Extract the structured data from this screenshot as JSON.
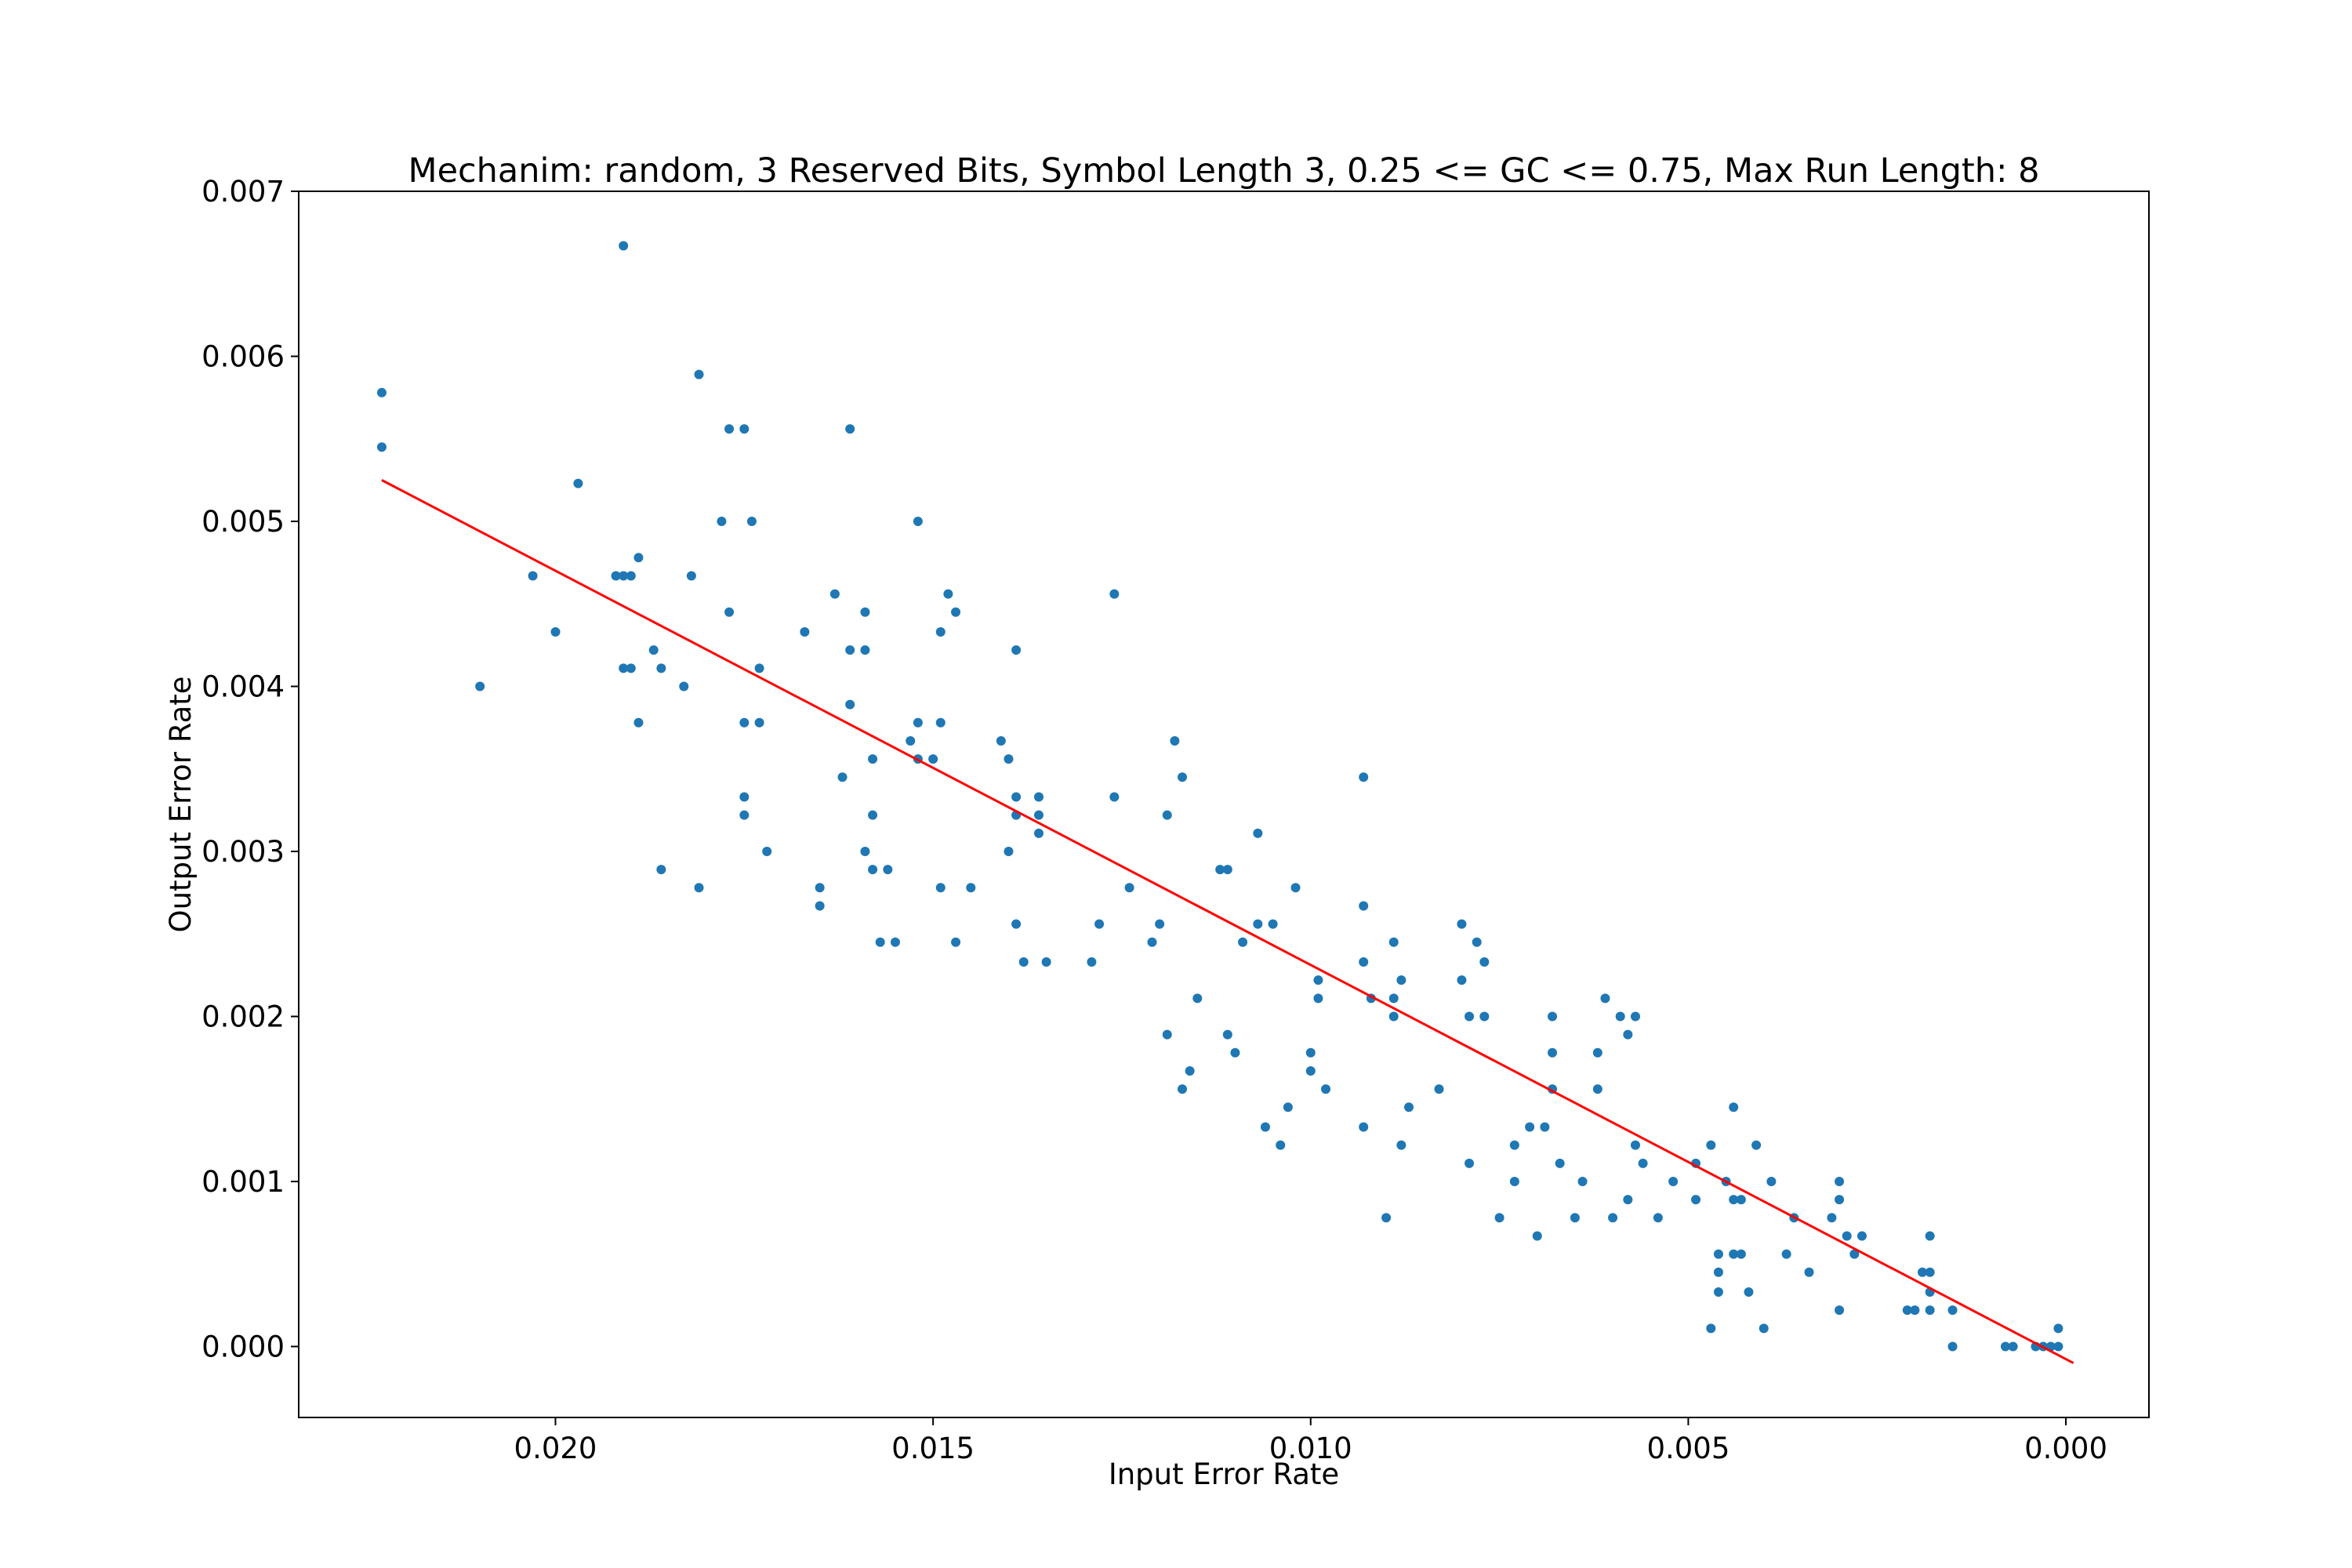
{
  "chart_data": {
    "type": "scatter",
    "title": "Mechanim: random, 3 Reserved Bits, Symbol Length 3, 0.25 <= GC <= 0.75, Max Run Length: 8",
    "xlabel": "Input Error Rate",
    "ylabel": "Output Error Rate",
    "x_inverted": true,
    "xlim": [
      0.0234,
      -0.0011
    ],
    "ylim": [
      -0.00043,
      0.007
    ],
    "grid": false,
    "x_ticks": [
      {
        "value": 0.02,
        "label": "0.020"
      },
      {
        "value": 0.015,
        "label": "0.015"
      },
      {
        "value": 0.01,
        "label": "0.010"
      },
      {
        "value": 0.005,
        "label": "0.005"
      },
      {
        "value": 0.0,
        "label": "0.000"
      }
    ],
    "y_ticks": [
      {
        "value": 0.0,
        "label": "0.000"
      },
      {
        "value": 0.001,
        "label": "0.001"
      },
      {
        "value": 0.002,
        "label": "0.002"
      },
      {
        "value": 0.003,
        "label": "0.003"
      },
      {
        "value": 0.004,
        "label": "0.004"
      },
      {
        "value": 0.005,
        "label": "0.005"
      },
      {
        "value": 0.006,
        "label": "0.006"
      },
      {
        "value": 0.007,
        "label": "0.007"
      }
    ],
    "colors": {
      "points": "#1f77b4",
      "fit_line": "#ff0000"
    },
    "fit_line": {
      "x": [
        0.0223,
        -0.0001
      ],
      "y": [
        0.00525,
        -0.0001
      ]
    },
    "series": [
      {
        "type": "scatter",
        "points": [
          [
            0.0223,
            0.00578
          ],
          [
            0.0223,
            0.00545
          ],
          [
            0.021,
            0.004
          ],
          [
            0.0203,
            0.00467
          ],
          [
            0.02,
            0.00433
          ],
          [
            0.0197,
            0.00523
          ],
          [
            0.0192,
            0.00467
          ],
          [
            0.0191,
            0.00667
          ],
          [
            0.0191,
            0.00411
          ],
          [
            0.0191,
            0.00467
          ],
          [
            0.019,
            0.00467
          ],
          [
            0.019,
            0.00411
          ],
          [
            0.0189,
            0.00478
          ],
          [
            0.0189,
            0.00378
          ],
          [
            0.0187,
            0.00422
          ],
          [
            0.0186,
            0.00411
          ],
          [
            0.0186,
            0.00289
          ],
          [
            0.0183,
            0.004
          ],
          [
            0.0182,
            0.00467
          ],
          [
            0.0181,
            0.00589
          ],
          [
            0.0181,
            0.00278
          ],
          [
            0.0178,
            0.005
          ],
          [
            0.0177,
            0.00556
          ],
          [
            0.0177,
            0.00445
          ],
          [
            0.0175,
            0.00556
          ],
          [
            0.0175,
            0.00378
          ],
          [
            0.0175,
            0.00333
          ],
          [
            0.0175,
            0.00322
          ],
          [
            0.0174,
            0.005
          ],
          [
            0.0173,
            0.00411
          ],
          [
            0.0173,
            0.00378
          ],
          [
            0.0172,
            0.003
          ],
          [
            0.0167,
            0.00433
          ],
          [
            0.0165,
            0.00278
          ],
          [
            0.0165,
            0.00267
          ],
          [
            0.0163,
            0.00456
          ],
          [
            0.0162,
            0.00345
          ],
          [
            0.0161,
            0.00556
          ],
          [
            0.0161,
            0.00422
          ],
          [
            0.0161,
            0.00389
          ],
          [
            0.0159,
            0.00445
          ],
          [
            0.0159,
            0.00422
          ],
          [
            0.0159,
            0.003
          ],
          [
            0.0158,
            0.00356
          ],
          [
            0.0158,
            0.00322
          ],
          [
            0.0158,
            0.00289
          ],
          [
            0.0157,
            0.00245
          ],
          [
            0.0156,
            0.00289
          ],
          [
            0.0155,
            0.00245
          ],
          [
            0.0153,
            0.00367
          ],
          [
            0.0152,
            0.005
          ],
          [
            0.0152,
            0.00378
          ],
          [
            0.0152,
            0.00356
          ],
          [
            0.015,
            0.00356
          ],
          [
            0.0149,
            0.00433
          ],
          [
            0.0149,
            0.00378
          ],
          [
            0.0149,
            0.00278
          ],
          [
            0.0148,
            0.00456
          ],
          [
            0.0147,
            0.00445
          ],
          [
            0.0147,
            0.00245
          ],
          [
            0.0145,
            0.00278
          ],
          [
            0.0141,
            0.00367
          ],
          [
            0.014,
            0.00356
          ],
          [
            0.014,
            0.003
          ],
          [
            0.0139,
            0.00422
          ],
          [
            0.0139,
            0.00333
          ],
          [
            0.0139,
            0.00322
          ],
          [
            0.0139,
            0.00256
          ],
          [
            0.0138,
            0.00233
          ],
          [
            0.0136,
            0.00333
          ],
          [
            0.0136,
            0.00322
          ],
          [
            0.0136,
            0.00311
          ],
          [
            0.0135,
            0.00233
          ],
          [
            0.0129,
            0.00233
          ],
          [
            0.0128,
            0.00256
          ],
          [
            0.0126,
            0.00456
          ],
          [
            0.0126,
            0.00333
          ],
          [
            0.0124,
            0.00278
          ],
          [
            0.0121,
            0.00245
          ],
          [
            0.012,
            0.00256
          ],
          [
            0.0119,
            0.00322
          ],
          [
            0.0119,
            0.00189
          ],
          [
            0.0118,
            0.00367
          ],
          [
            0.0117,
            0.00345
          ],
          [
            0.0117,
            0.00156
          ],
          [
            0.0116,
            0.00167
          ],
          [
            0.0115,
            0.00211
          ],
          [
            0.0112,
            0.00289
          ],
          [
            0.0111,
            0.00289
          ],
          [
            0.0111,
            0.00189
          ],
          [
            0.011,
            0.00178
          ],
          [
            0.0109,
            0.00245
          ],
          [
            0.0107,
            0.00311
          ],
          [
            0.0107,
            0.00256
          ],
          [
            0.0106,
            0.00133
          ],
          [
            0.0105,
            0.00256
          ],
          [
            0.0104,
            0.00122
          ],
          [
            0.0103,
            0.00145
          ],
          [
            0.0102,
            0.00278
          ],
          [
            0.01,
            0.00178
          ],
          [
            0.01,
            0.00167
          ],
          [
            0.0099,
            0.00222
          ],
          [
            0.0099,
            0.00211
          ],
          [
            0.0098,
            0.00156
          ],
          [
            0.0093,
            0.00345
          ],
          [
            0.0093,
            0.00267
          ],
          [
            0.0093,
            0.00233
          ],
          [
            0.0093,
            0.00133
          ],
          [
            0.0092,
            0.00211
          ],
          [
            0.009,
            0.00078
          ],
          [
            0.0089,
            0.00245
          ],
          [
            0.0089,
            0.00211
          ],
          [
            0.0089,
            0.002
          ],
          [
            0.0088,
            0.00222
          ],
          [
            0.0088,
            0.00122
          ],
          [
            0.0087,
            0.00145
          ],
          [
            0.0083,
            0.00156
          ],
          [
            0.008,
            0.00256
          ],
          [
            0.008,
            0.00222
          ],
          [
            0.0079,
            0.002
          ],
          [
            0.0079,
            0.00111
          ],
          [
            0.0078,
            0.00245
          ],
          [
            0.0077,
            0.00233
          ],
          [
            0.0077,
            0.002
          ],
          [
            0.0075,
            0.00078
          ],
          [
            0.0073,
            0.00122
          ],
          [
            0.0073,
            0.001
          ],
          [
            0.0071,
            0.00133
          ],
          [
            0.007,
            0.00067
          ],
          [
            0.0069,
            0.00133
          ],
          [
            0.0068,
            0.002
          ],
          [
            0.0068,
            0.00178
          ],
          [
            0.0068,
            0.00156
          ],
          [
            0.0067,
            0.00111
          ],
          [
            0.0065,
            0.00078
          ],
          [
            0.0064,
            0.001
          ],
          [
            0.0062,
            0.00178
          ],
          [
            0.0062,
            0.00156
          ],
          [
            0.0061,
            0.00211
          ],
          [
            0.006,
            0.00078
          ],
          [
            0.0059,
            0.002
          ],
          [
            0.0058,
            0.00189
          ],
          [
            0.0058,
            0.00089
          ],
          [
            0.0057,
            0.002
          ],
          [
            0.0057,
            0.00122
          ],
          [
            0.0056,
            0.00111
          ],
          [
            0.0054,
            0.00078
          ],
          [
            0.0052,
            0.001
          ],
          [
            0.0049,
            0.00111
          ],
          [
            0.0049,
            0.00089
          ],
          [
            0.0047,
            0.00122
          ],
          [
            0.0047,
            0.00011
          ],
          [
            0.0046,
            0.00056
          ],
          [
            0.0046,
            0.00045
          ],
          [
            0.0046,
            0.00033
          ],
          [
            0.0045,
            0.001
          ],
          [
            0.0044,
            0.00145
          ],
          [
            0.0044,
            0.00089
          ],
          [
            0.0044,
            0.00056
          ],
          [
            0.0043,
            0.00089
          ],
          [
            0.0043,
            0.00056
          ],
          [
            0.0042,
            0.00033
          ],
          [
            0.0041,
            0.00122
          ],
          [
            0.004,
            0.00011
          ],
          [
            0.0039,
            0.001
          ],
          [
            0.0037,
            0.00056
          ],
          [
            0.0036,
            0.00078
          ],
          [
            0.0034,
            0.00045
          ],
          [
            0.0031,
            0.00078
          ],
          [
            0.003,
            0.001
          ],
          [
            0.003,
            0.00089
          ],
          [
            0.003,
            0.00022
          ],
          [
            0.0029,
            0.00067
          ],
          [
            0.0028,
            0.00056
          ],
          [
            0.0027,
            0.00067
          ],
          [
            0.0021,
            0.00022
          ],
          [
            0.002,
            0.00022
          ],
          [
            0.0019,
            0.00045
          ],
          [
            0.0018,
            0.00067
          ],
          [
            0.0018,
            0.00045
          ],
          [
            0.0018,
            0.00033
          ],
          [
            0.0018,
            0.00022
          ],
          [
            0.0015,
            0.00022
          ],
          [
            0.0015,
            0.0
          ],
          [
            0.0008,
            0.0
          ],
          [
            0.0007,
            0.0
          ],
          [
            0.0004,
            0.0
          ],
          [
            0.0003,
            0.0
          ],
          [
            0.0002,
            0.0
          ],
          [
            0.0001,
            0.00011
          ],
          [
            0.0001,
            0.0
          ]
        ]
      }
    ]
  }
}
